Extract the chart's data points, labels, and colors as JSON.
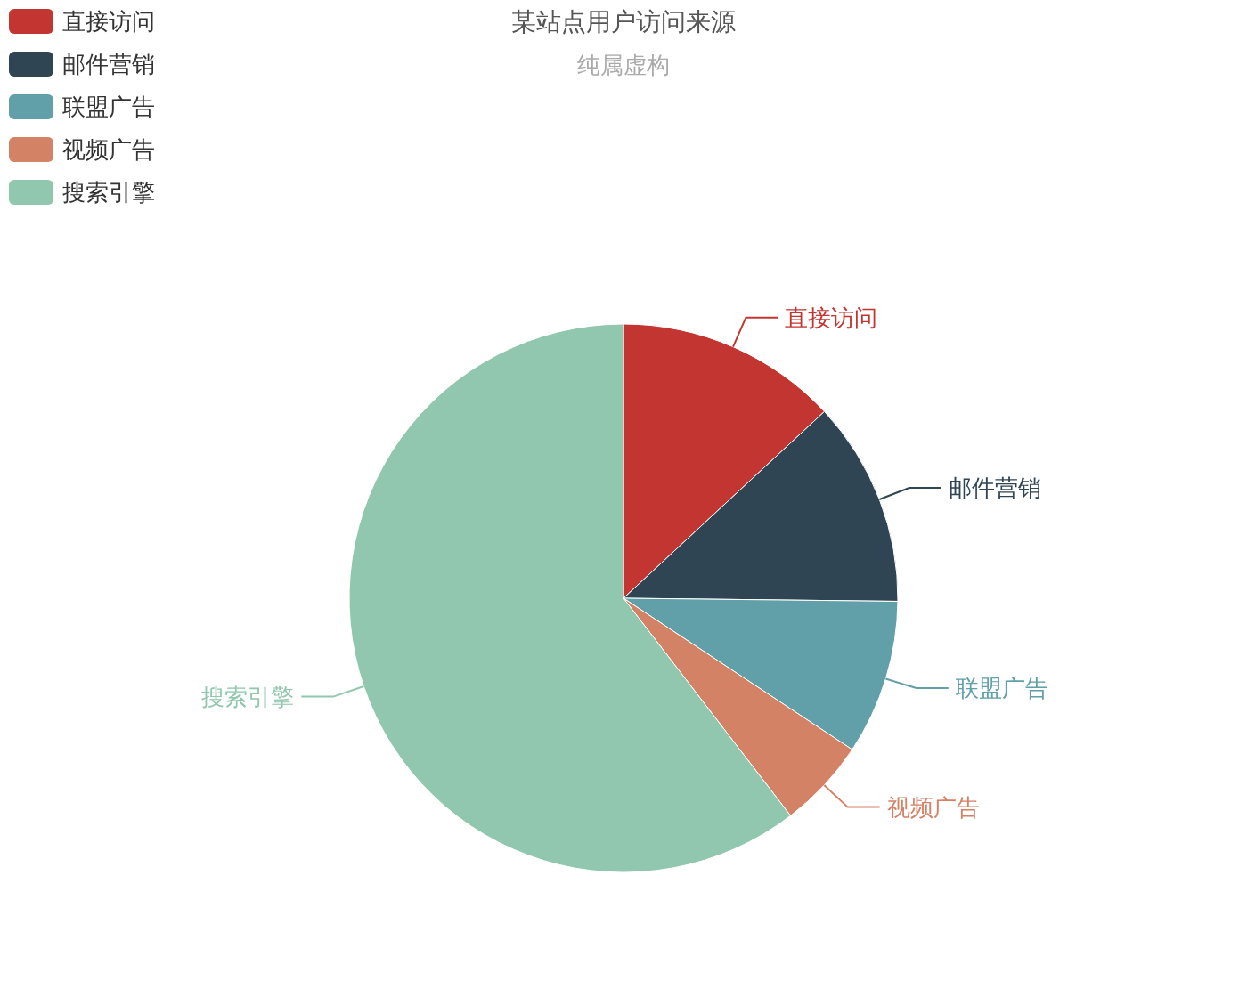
{
  "chart_data": {
    "type": "pie",
    "title": "某站点用户访问来源",
    "subtitle": "纯属虚构",
    "categories": [
      "直接访问",
      "邮件营销",
      "联盟广告",
      "视频广告",
      "搜索引擎"
    ],
    "values": [
      13.08,
      12.1,
      9.13,
      5.27,
      60.42
    ],
    "colors": [
      "#c23531",
      "#2f4554",
      "#61a0a8",
      "#d48265",
      "#91c7ae"
    ],
    "legend": "top left"
  }
}
